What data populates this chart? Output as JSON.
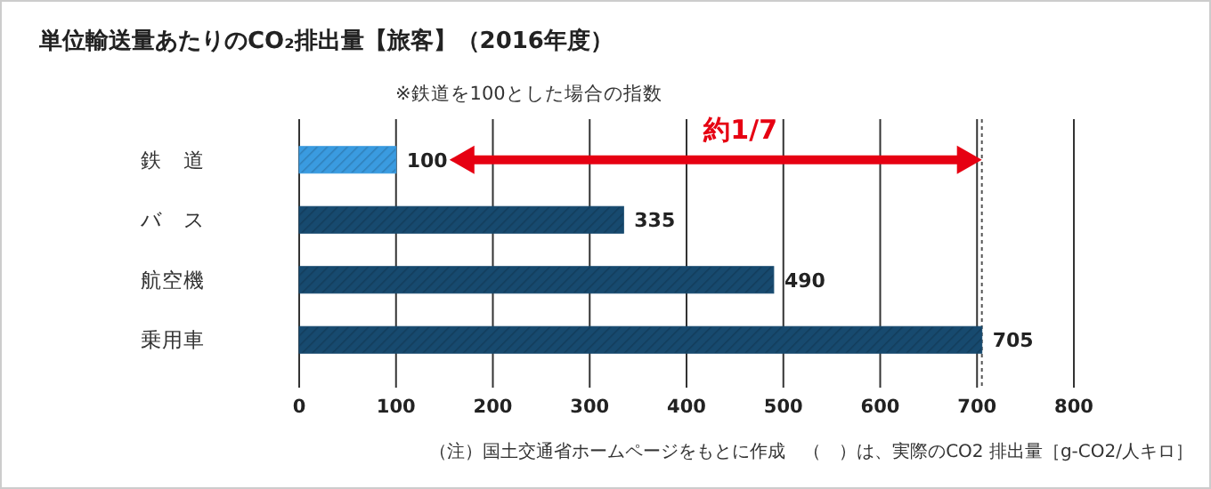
{
  "chart_data": {
    "type": "bar",
    "orientation": "horizontal",
    "title": "単位輸送量あたりのCO₂排出量【旅客】（2016年度）",
    "subtitle": "※鉄道を100とした場合の指数",
    "categories": [
      "鉄　道",
      "バ　ス",
      "航空機",
      "乗用車"
    ],
    "values": [
      100,
      335,
      490,
      705
    ],
    "colors": [
      "#3a9be0",
      "#174a6f",
      "#174a6f",
      "#174a6f"
    ],
    "data_labels": true,
    "xlim": [
      0,
      800
    ],
    "xticks": [
      0,
      100,
      200,
      300,
      400,
      500,
      600,
      700,
      800
    ],
    "grid": "x",
    "ref_lines": [
      {
        "axis": "x",
        "value": 705,
        "color": "#555555",
        "line_style": "dotted"
      }
    ],
    "annotations": [
      "約1/7",
      "（注）国土交通省ホームページをもとに作成　（　）は、実際のCO2 排出量［g-CO2/人キロ］"
    ]
  }
}
